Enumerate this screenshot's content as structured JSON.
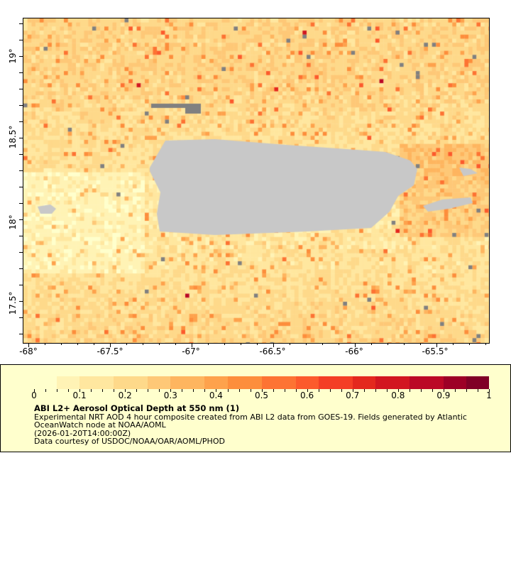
{
  "map": {
    "lon_ticks": [
      "-68°",
      "-67.5°",
      "-67°",
      "-66.5°",
      "-66°",
      "-65.5°"
    ],
    "lat_ticks": [
      "19°",
      "18.5°",
      "18°",
      "17.5°"
    ],
    "land_color": "#c8c8c8",
    "missing_color": "#808080"
  },
  "colorbar": {
    "labels": [
      "0",
      "0.1",
      "0.2",
      "0.3",
      "0.4",
      "0.5",
      "0.6",
      "0.7",
      "0.8",
      "0.9",
      "1"
    ],
    "colors": [
      "#ffffcc",
      "#fff3b5",
      "#ffe79f",
      "#fed98a",
      "#fec877",
      "#feb55f",
      "#fea24c",
      "#fd8e3c",
      "#fd7333",
      "#fc5a2c",
      "#f43e25",
      "#e4281e",
      "#d21620",
      "#bb0826",
      "#9d0026",
      "#800026"
    ],
    "range": [
      0,
      1
    ]
  },
  "legend": {
    "title": "ABI L2+ Aerosol Optical Depth at 550 nm (1)",
    "line1": "Experimental NRT AOD 4 hour composite created from ABI L2 data from GOES-19. Fields generated by Atlantic OceanWatch node at NOAA/AOML",
    "line2": "(2026-01-20T14:00:00Z)",
    "line3": "Data courtesy of USDOC/NOAA/OAR/AOML/PHOD"
  }
}
